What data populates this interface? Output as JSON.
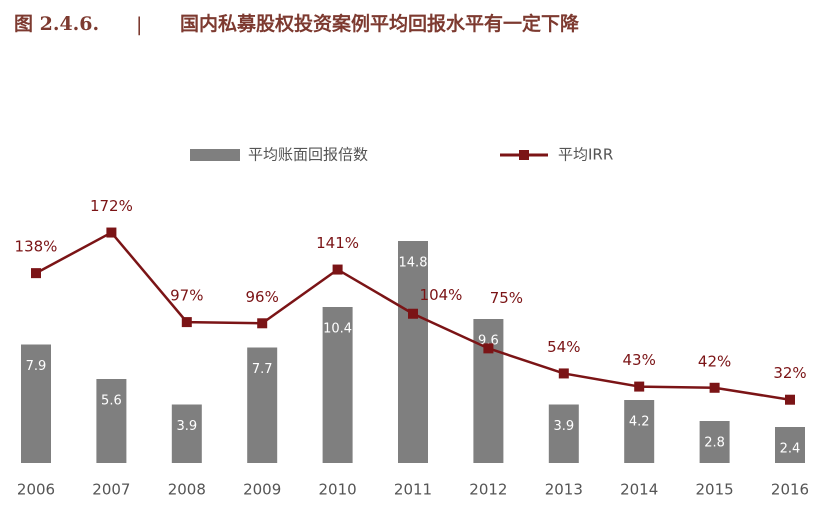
{
  "chart_data": {
    "type": "bar-line",
    "figure_label": "图 2.4.6.",
    "separator": "|",
    "title": "国内私募股权投资案例平均回报水平有一定下降",
    "categories": [
      "2006",
      "2007",
      "2008",
      "2009",
      "2010",
      "2011",
      "2012",
      "2013",
      "2014",
      "2015",
      "2016"
    ],
    "series": [
      {
        "name": "平均账面回报倍数",
        "type": "bar",
        "color": "#7f7f7f",
        "values": [
          7.9,
          5.6,
          3.9,
          7.7,
          10.4,
          14.8,
          9.6,
          3.9,
          4.2,
          2.8,
          2.4
        ]
      },
      {
        "name": "平均IRR",
        "type": "line",
        "axis": "y2",
        "color": "#7b1416",
        "values": [
          138,
          172,
          97,
          96,
          141,
          104,
          75,
          54,
          43,
          42,
          32
        ],
        "value_labels": [
          "138%",
          "172%",
          "97%",
          "96%",
          "141%",
          "104%",
          "75%",
          "54%",
          "43%",
          "42%",
          "32%"
        ]
      }
    ],
    "ylim": [
      0,
      24.2
    ],
    "y2lim": [
      -21,
      283
    ]
  }
}
